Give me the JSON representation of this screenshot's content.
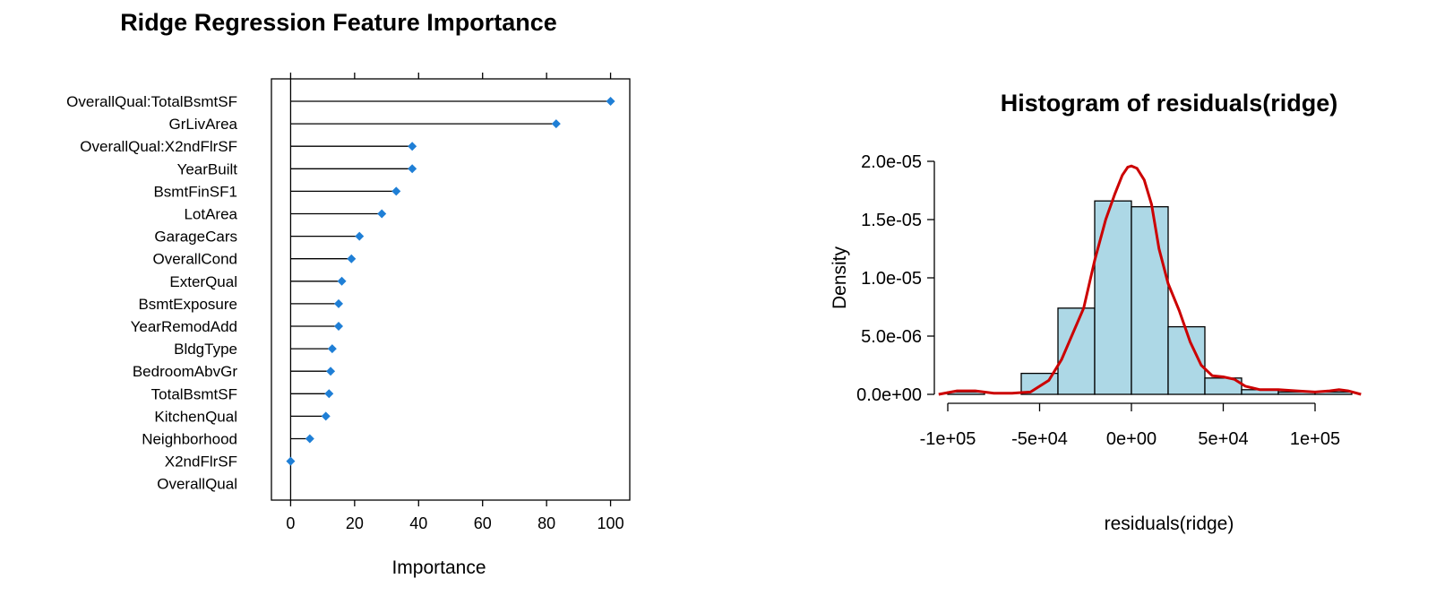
{
  "chart_data": [
    {
      "type": "lollipop",
      "title": "Ridge Regression Feature Importance",
      "xlabel": "Importance",
      "ylabel": "",
      "xlim": [
        -6,
        106
      ],
      "xticks": [
        0,
        20,
        40,
        60,
        80,
        100
      ],
      "grid": false,
      "point_color": "#1f7fd6",
      "categories": [
        "OverallQual:TotalBsmtSF",
        "GrLivArea",
        "OverallQual:X2ndFlrSF",
        "YearBuilt",
        "BsmtFinSF1",
        "LotArea",
        "GarageCars",
        "OverallCond",
        "ExterQual",
        "BsmtExposure",
        "YearRemodAdd",
        "BldgType",
        "BedroomAbvGr",
        "TotalBsmtSF",
        "KitchenQual",
        "Neighborhood",
        "X2ndFlrSF",
        "OverallQual"
      ],
      "values": [
        100,
        83,
        38,
        38,
        33,
        28.5,
        21.5,
        19,
        16,
        15,
        15,
        13,
        12.5,
        12,
        11,
        6,
        0,
        null
      ]
    },
    {
      "type": "histogram",
      "title": "Histogram of residuals(ridge)",
      "xlabel": "residuals(ridge)",
      "ylabel": "Density",
      "bar_color": "#add8e6",
      "line_color": "#cc0000",
      "xticks": [
        -100000,
        -50000,
        0,
        50000,
        100000
      ],
      "xtick_labels": [
        "-1e+05",
        "-5e+04",
        "0e+00",
        "5e+04",
        "1e+05"
      ],
      "yticks": [
        0,
        5e-06,
        1e-05,
        1.5e-05,
        2e-05
      ],
      "ytick_labels": [
        "0.0e+00",
        "5.0e-06",
        "1.0e-05",
        "1.5e-05",
        "2.0e-05"
      ],
      "bins": [
        {
          "x0": -100000,
          "x1": -80000,
          "density": 2e-07
        },
        {
          "x0": -80000,
          "x1": -60000,
          "density": 0.0
        },
        {
          "x0": -60000,
          "x1": -40000,
          "density": 1.8e-06
        },
        {
          "x0": -40000,
          "x1": -20000,
          "density": 7.4e-06
        },
        {
          "x0": -20000,
          "x1": 0,
          "density": 1.66e-05
        },
        {
          "x0": 0,
          "x1": 20000,
          "density": 1.61e-05
        },
        {
          "x0": 20000,
          "x1": 40000,
          "density": 5.8e-06
        },
        {
          "x0": 40000,
          "x1": 60000,
          "density": 1.4e-06
        },
        {
          "x0": 60000,
          "x1": 80000,
          "density": 4e-07
        },
        {
          "x0": 80000,
          "x1": 100000,
          "density": 2e-07
        },
        {
          "x0": 100000,
          "x1": 120000,
          "density": 2e-07
        }
      ],
      "density_curve": {
        "x": [
          -105000,
          -95000,
          -85000,
          -75000,
          -65000,
          -55000,
          -45000,
          -38000,
          -32000,
          -26000,
          -20000,
          -14000,
          -9000,
          -5000,
          -2000,
          0,
          3000,
          7000,
          11000,
          15000,
          20000,
          26000,
          32000,
          38000,
          44000,
          50000,
          56000,
          62000,
          70000,
          80000,
          90000,
          100000,
          108000,
          113000,
          118000,
          125000
        ],
        "y": [
          0.0,
          3e-07,
          3e-07,
          1e-07,
          1e-07,
          2e-07,
          1.2e-06,
          3e-06,
          5.2e-06,
          7.4e-06,
          1.15e-05,
          1.5e-05,
          1.72e-05,
          1.88e-05,
          1.95e-05,
          1.96e-05,
          1.94e-05,
          1.84e-05,
          1.63e-05,
          1.25e-05,
          9.5e-06,
          7.2e-06,
          4.5e-06,
          2.5e-06,
          1.6e-06,
          1.5e-06,
          1.3e-06,
          7e-07,
          4e-07,
          4e-07,
          3e-07,
          2e-07,
          3e-07,
          4e-07,
          3e-07,
          0.0
        ]
      }
    }
  ]
}
